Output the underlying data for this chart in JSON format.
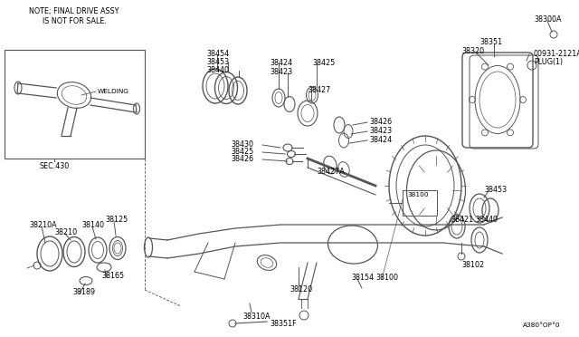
{
  "bg_color": "#ffffff",
  "line_color": "#555555",
  "text_color": "#000000",
  "font_size": 5.8,
  "diagram_code": "A380°OP°0",
  "note_text": "NOTE; FINAL DRIVE ASSY\nIS NOT FOR SALE.",
  "welding_label": "WELDING",
  "sec_label": "SEC.430",
  "figsize": [
    6.4,
    3.72
  ],
  "dpi": 100
}
